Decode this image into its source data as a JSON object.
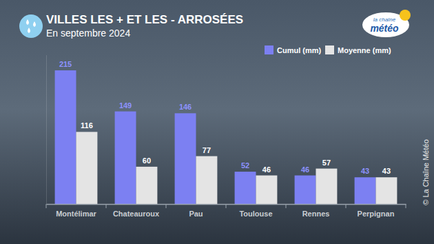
{
  "chart_data": {
    "type": "bar",
    "title": "VILLES LES + ET LES - ARROSÉES",
    "subtitle": "En septembre 2024",
    "annotations": [
      "la chaîne",
      "météo",
      "© La Chaîne Météo"
    ],
    "categories": [
      "Montélimar",
      "Chateauroux",
      "Pau",
      "Toulouse",
      "Rennes",
      "Perpignan"
    ],
    "series": [
      {
        "name": "Cumul (mm)",
        "color": "#7c80f2",
        "values": [
          215,
          149,
          146,
          52,
          46,
          43
        ]
      },
      {
        "name": "Moyenne (mm)",
        "color": "#e4e4e4",
        "values": [
          116,
          60,
          77,
          46,
          57,
          43
        ]
      }
    ],
    "ylim": [
      0,
      240
    ],
    "yticks": [],
    "data_labels": true,
    "tick_labels": "x",
    "legend": "top-right",
    "grid": false
  }
}
